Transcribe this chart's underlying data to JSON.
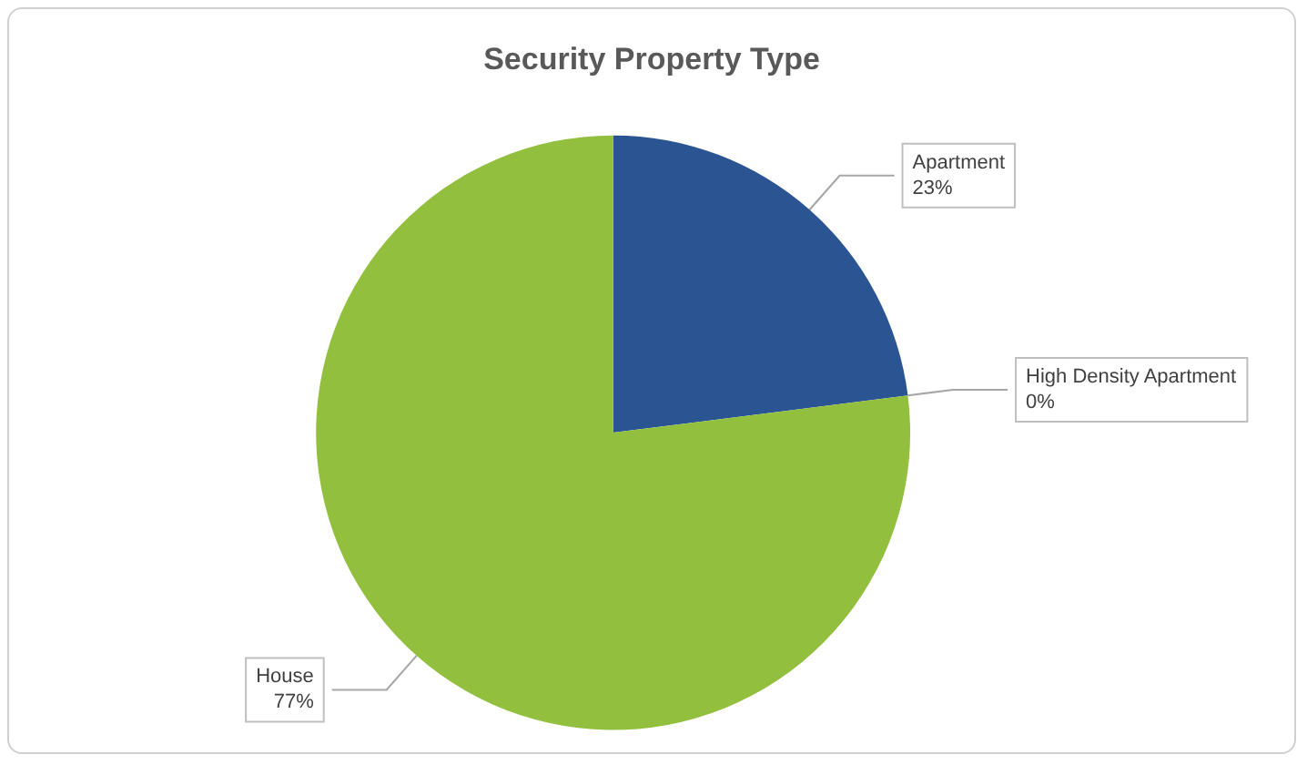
{
  "chart_data": {
    "type": "pie",
    "title": "Security Property Type",
    "categories": [
      "Apartment",
      "High Density Apartment",
      "House"
    ],
    "values": [
      23,
      0,
      77
    ],
    "value_labels": [
      "23%",
      "0%",
      "77%"
    ],
    "colors": [
      "#2b5592",
      "#c0504d",
      "#93bf3f"
    ],
    "legend": false
  }
}
